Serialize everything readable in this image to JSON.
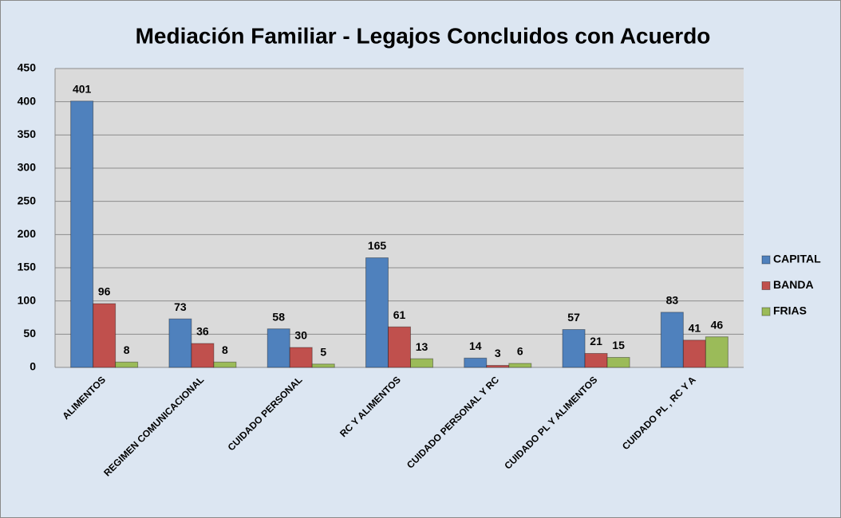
{
  "chart_data": {
    "type": "bar",
    "title": "Mediación Familiar - Legajos Concluidos con Acuerdo",
    "categories": [
      "ALIMENTOS",
      "REGIMEN COMUNICACIONAL",
      "CUIDADO PERSONAL",
      "RC Y ALIMENTOS",
      "CUIDADO PERSONAL Y RC",
      "CUIDADO PL Y ALIMENTOS",
      "CUIDADO PL , RC Y A"
    ],
    "series": [
      {
        "name": "CAPITAL",
        "color": "#4f81bd",
        "values": [
          401,
          73,
          58,
          165,
          14,
          57,
          83
        ]
      },
      {
        "name": "BANDA",
        "color": "#c0504d",
        "values": [
          96,
          36,
          30,
          61,
          3,
          21,
          41
        ]
      },
      {
        "name": "FRIAS",
        "color": "#9bbb59",
        "values": [
          8,
          8,
          5,
          13,
          6,
          15,
          46
        ]
      }
    ],
    "ylim": [
      0,
      450
    ],
    "yticks": [
      0,
      50,
      100,
      150,
      200,
      250,
      300,
      350,
      400,
      450
    ],
    "grid": true,
    "legend": "right"
  }
}
